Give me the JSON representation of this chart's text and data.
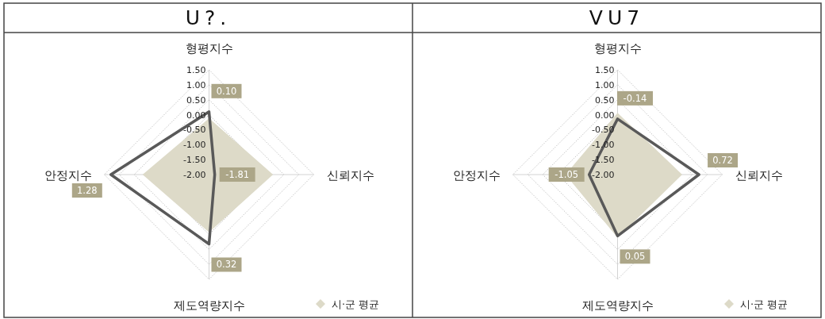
{
  "chart_data": [
    {
      "type": "radar",
      "title": "U?.",
      "categories": [
        "형평지수",
        "신뢰지수",
        "제도역량지수",
        "안정지수"
      ],
      "series": [
        {
          "name": "시·군 평균",
          "color": "#dddac8",
          "values": [
            -0.12,
            0.14,
            -0.07,
            0.22
          ]
        },
        {
          "color": "#595959",
          "values": [
            0.1,
            -1.81,
            0.32,
            1.28
          ],
          "value_labels": [
            "0.10",
            "-1.81",
            "0.32",
            "1.28"
          ]
        }
      ],
      "ylim": [
        -2,
        1.5
      ],
      "yticks": [
        {
          "value": -2,
          "label": "-2.00"
        },
        {
          "value": -1.5,
          "label": "-1.50"
        },
        {
          "value": -1,
          "label": "-1.00"
        },
        {
          "value": -0.5,
          "label": "-0.50"
        },
        {
          "value": 0,
          "label": "0.00"
        },
        {
          "value": 0.5,
          "label": "0.50"
        },
        {
          "value": 1,
          "label": "1.00"
        },
        {
          "value": 1.5,
          "label": "1.50"
        }
      ],
      "grid": true,
      "legend": "bottom right"
    },
    {
      "type": "radar",
      "title": "VU7",
      "categories": [
        "형평지수",
        "신뢰지수",
        "제도역량지수",
        "안정지수"
      ],
      "series": [
        {
          "name": "시·군 평균",
          "color": "#dddac8",
          "values": [
            0.06,
            0.16,
            0.11,
            -0.26
          ]
        },
        {
          "color": "#595959",
          "values": [
            -0.14,
            0.72,
            0.05,
            -1.05
          ],
          "value_labels": [
            "-0.14",
            "0.72",
            "0.05",
            "-1.05"
          ]
        }
      ],
      "ylim": [
        -2,
        1.5
      ],
      "yticks": [
        {
          "value": -2,
          "label": "-2.00"
        },
        {
          "value": -1.5,
          "label": "-1.50"
        },
        {
          "value": -1,
          "label": "-1.00"
        },
        {
          "value": -0.5,
          "label": "-0.50"
        },
        {
          "value": 0,
          "label": "0.00"
        },
        {
          "value": 0.5,
          "label": "0.50"
        },
        {
          "value": 1,
          "label": "1.00"
        },
        {
          "value": 1.5,
          "label": "1.50"
        }
      ],
      "grid": true,
      "legend": "bottom right"
    }
  ]
}
